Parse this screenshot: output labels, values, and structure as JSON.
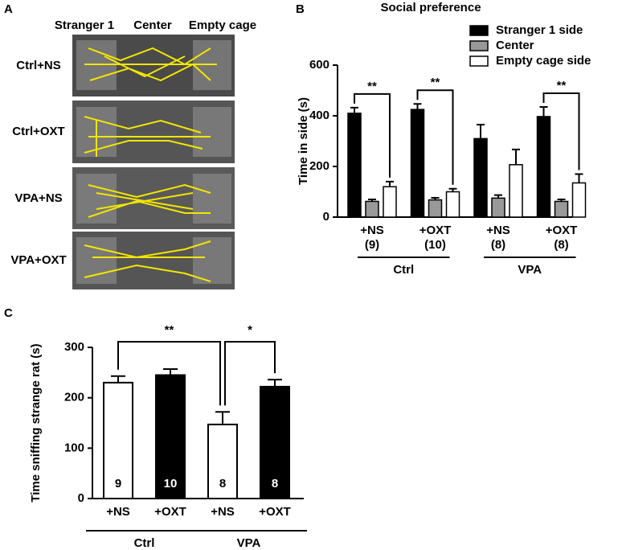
{
  "panel_a": {
    "label": "A",
    "columns": [
      "Stranger 1",
      "Center",
      "Empty cage"
    ],
    "rows": [
      "Ctrl+NS",
      "Ctrl+OXT",
      "VPA+NS",
      "VPA+OXT"
    ]
  },
  "chart_data": [
    {
      "type": "grouped-bar",
      "panel": "B",
      "title": "Social preference",
      "y_label": "Time in side (s)",
      "categories": [
        "+NS",
        "+OXT",
        "+NS",
        "+OXT"
      ],
      "n_labels": [
        "(9)",
        "(10)",
        "(8)",
        "(8)"
      ],
      "groups": [
        "Ctrl",
        "VPA"
      ],
      "series": [
        {
          "name": "Stranger 1 side",
          "color": "#000000",
          "values": [
            410,
            425,
            310,
            397
          ],
          "errors": [
            22,
            22,
            55,
            38
          ]
        },
        {
          "name": "Center",
          "color": "#999999",
          "values": [
            62,
            68,
            75,
            62
          ],
          "errors": [
            8,
            8,
            12,
            8
          ]
        },
        {
          "name": "Empty cage side",
          "color": "#ffffff",
          "values": [
            120,
            100,
            207,
            135
          ],
          "errors": [
            20,
            12,
            60,
            35
          ]
        }
      ],
      "significance": [
        "**",
        "**",
        null,
        "**"
      ],
      "ylim": [
        0,
        600
      ],
      "yticks": [
        0,
        200,
        400,
        600
      ]
    },
    {
      "type": "bar",
      "panel": "C",
      "y_label": "Time sniffing strange rat (s)",
      "categories": [
        "+NS",
        "+OXT",
        "+NS",
        "+OXT"
      ],
      "groups": [
        "Ctrl",
        "VPA"
      ],
      "values": [
        230,
        245,
        147,
        222
      ],
      "errors": [
        13,
        12,
        25,
        14
      ],
      "colors": [
        "#ffffff",
        "#000000",
        "#ffffff",
        "#000000"
      ],
      "n_labels": [
        "9",
        "10",
        "8",
        "8"
      ],
      "comparisons": [
        {
          "text": "**",
          "between": [
            0,
            2
          ]
        },
        {
          "text": "*",
          "between": [
            2,
            3
          ]
        }
      ],
      "ylim": [
        0,
        300
      ],
      "yticks": [
        0,
        100,
        200,
        300
      ]
    }
  ]
}
